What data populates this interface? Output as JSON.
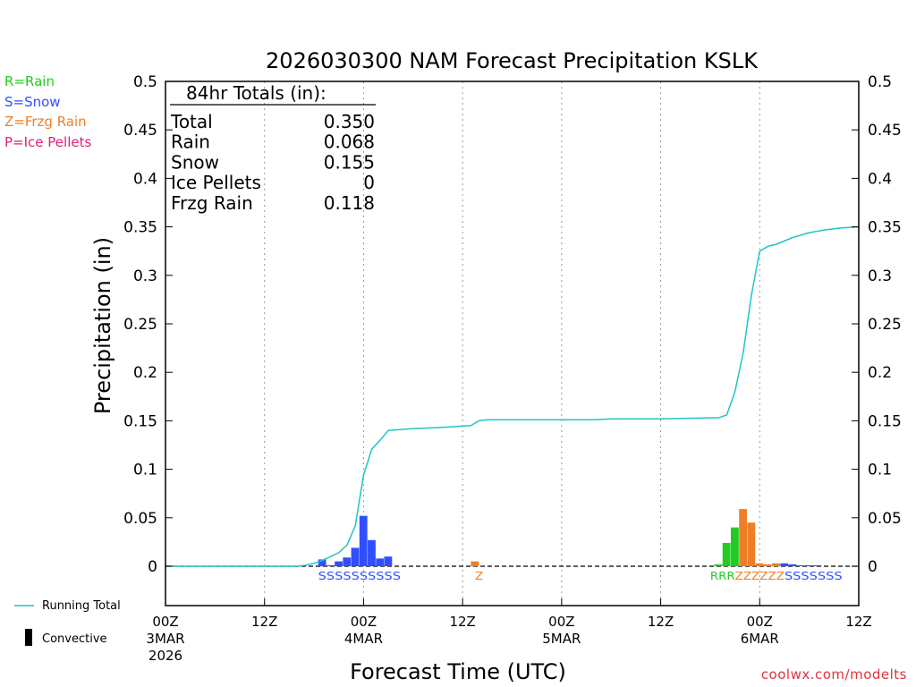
{
  "legend_codes": [
    {
      "label": "R=Rain",
      "color": "#22cc22"
    },
    {
      "label": "S=Snow",
      "color": "#2f4fff"
    },
    {
      "label": "Z=Frzg Rain",
      "color": "#ee7f27"
    },
    {
      "label": "P=Ice Pellets",
      "color": "#e0207a"
    }
  ],
  "bottom_legend": {
    "running_total": "Running Total",
    "convective": "Convective"
  },
  "credit": "coolwx.com/modelts",
  "totals_box": {
    "title": "84hr Totals (in):",
    "rows": [
      {
        "label": "Total",
        "value": "0.350"
      },
      {
        "label": "Rain",
        "value": "0.068"
      },
      {
        "label": "Snow",
        "value": "0.155"
      },
      {
        "label": "Ice Pellets",
        "value": "0"
      },
      {
        "label": "Frzg Rain",
        "value": "0.118"
      }
    ]
  },
  "chart_data": {
    "type": "bar",
    "title": "2026030300 NAM Forecast Precipitation KSLK",
    "xlabel": "Forecast Time (UTC)",
    "ylabel": "Precipitation (in)",
    "ylim": [
      -0.04,
      0.5
    ],
    "yticks": [
      0,
      0.05,
      0.1,
      0.15,
      0.2,
      0.25,
      0.3,
      0.35,
      0.4,
      0.45,
      0.5
    ],
    "ytick_labels": [
      "0",
      "0.05",
      "0.1",
      "0.15",
      "0.2",
      "0.25",
      "0.3",
      "0.35",
      "0.4",
      "0.45",
      "0.5"
    ],
    "xlim_hours": [
      0,
      84
    ],
    "xticks": [
      {
        "hour": 0,
        "label": "00Z",
        "date": "3MAR",
        "year": "2026"
      },
      {
        "hour": 12,
        "label": "12Z",
        "date": "",
        "year": ""
      },
      {
        "hour": 24,
        "label": "00Z",
        "date": "4MAR",
        "year": ""
      },
      {
        "hour": 36,
        "label": "12Z",
        "date": "",
        "year": ""
      },
      {
        "hour": 48,
        "label": "00Z",
        "date": "5MAR",
        "year": ""
      },
      {
        "hour": 60,
        "label": "12Z",
        "date": "",
        "year": ""
      },
      {
        "hour": 72,
        "label": "00Z",
        "date": "6MAR",
        "year": ""
      },
      {
        "hour": 84,
        "label": "12Z",
        "date": "",
        "year": ""
      }
    ],
    "series_colors": {
      "snow": "#2f4fff",
      "rain": "#22cc22",
      "frzg_rain": "#ee7f27",
      "running_total": "#22c4c4"
    },
    "bars": [
      {
        "hour": 19,
        "value": 0.007,
        "type": "snow"
      },
      {
        "hour": 20,
        "value": 0.001,
        "type": "snow"
      },
      {
        "hour": 21,
        "value": 0.005,
        "type": "snow"
      },
      {
        "hour": 22,
        "value": 0.009,
        "type": "snow"
      },
      {
        "hour": 23,
        "value": 0.019,
        "type": "snow"
      },
      {
        "hour": 24,
        "value": 0.052,
        "type": "snow"
      },
      {
        "hour": 25,
        "value": 0.027,
        "type": "snow"
      },
      {
        "hour": 26,
        "value": 0.008,
        "type": "snow"
      },
      {
        "hour": 27,
        "value": 0.01,
        "type": "snow"
      },
      {
        "hour": 37.5,
        "value": 0.005,
        "type": "frzg_rain"
      },
      {
        "hour": 67,
        "value": 0.002,
        "type": "rain"
      },
      {
        "hour": 68,
        "value": 0.024,
        "type": "rain"
      },
      {
        "hour": 69,
        "value": 0.04,
        "type": "rain"
      },
      {
        "hour": 70,
        "value": 0.059,
        "type": "frzg_rain"
      },
      {
        "hour": 71,
        "value": 0.045,
        "type": "frzg_rain"
      },
      {
        "hour": 72,
        "value": 0.003,
        "type": "frzg_rain"
      },
      {
        "hour": 73,
        "value": 0.002,
        "type": "frzg_rain"
      },
      {
        "hour": 74,
        "value": 0.003,
        "type": "frzg_rain"
      },
      {
        "hour": 75,
        "value": 0.003,
        "type": "snow"
      },
      {
        "hour": 76,
        "value": 0.002,
        "type": "snow"
      },
      {
        "hour": 77,
        "value": 0.001,
        "type": "snow"
      },
      {
        "hour": 78,
        "value": 0.001,
        "type": "snow"
      },
      {
        "hour": 79,
        "value": 0.001,
        "type": "snow"
      }
    ],
    "running_total": {
      "hours": [
        0,
        16,
        17,
        18,
        19,
        20,
        21,
        22,
        23,
        24,
        25,
        26,
        27,
        30,
        33,
        37,
        38,
        39,
        42,
        48,
        52,
        54,
        60,
        66,
        67,
        68,
        69,
        70,
        71,
        72,
        73,
        74,
        76,
        78,
        80,
        82,
        84
      ],
      "values": [
        0,
        0,
        0.001,
        0.003,
        0.006,
        0.01,
        0.014,
        0.022,
        0.042,
        0.094,
        0.121,
        0.13,
        0.14,
        0.142,
        0.143,
        0.145,
        0.15,
        0.151,
        0.151,
        0.151,
        0.151,
        0.152,
        0.152,
        0.153,
        0.153,
        0.156,
        0.18,
        0.22,
        0.28,
        0.325,
        0.33,
        0.332,
        0.339,
        0.344,
        0.347,
        0.349,
        0.35
      ]
    },
    "type_codes": [
      {
        "letters": "SSSSSSSSSS",
        "start_hour": 18.5,
        "color": "#2f4fff"
      },
      {
        "letters": "Z",
        "start_hour": 37.5,
        "color": "#ee7f27"
      },
      {
        "letters": "RRR",
        "start_hour": 66,
        "color": "#22cc22"
      },
      {
        "letters": "ZZZZZZ",
        "start_hour": 69,
        "color": "#ee7f27"
      },
      {
        "letters": "SSSSSSS",
        "start_hour": 75,
        "color": "#2f4fff"
      }
    ]
  }
}
